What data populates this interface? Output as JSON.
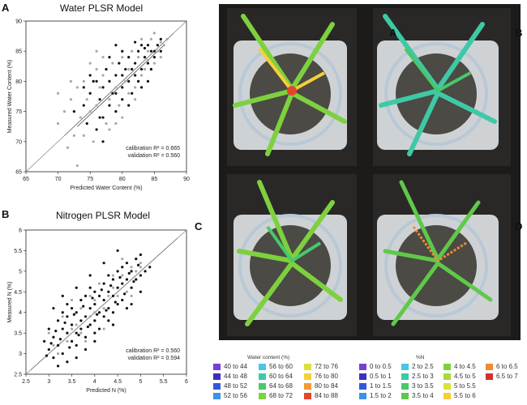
{
  "panels": {
    "a": "A",
    "b": "B",
    "c": "C",
    "d": "D",
    "chart_a": "A",
    "chart_b": "B"
  },
  "chart_data": [
    {
      "type": "scatter",
      "title": "Water PLSR Model",
      "xlabel": "Predicted Water Content (%)",
      "ylabel": "Measured Water Content (%)",
      "xlim": [
        65,
        90
      ],
      "ylim": [
        65,
        90
      ],
      "xticks": [
        "65",
        "70",
        "75",
        "80",
        "85",
        "90"
      ],
      "yticks": [
        "65",
        "70",
        "75",
        "80",
        "85",
        "90"
      ],
      "xtick_values": [
        65,
        70,
        75,
        80,
        85,
        90
      ],
      "ytick_values": [
        65,
        70,
        75,
        80,
        85,
        90
      ],
      "stats": [
        "calibration R² = 0.665",
        "validation R² = 0.560"
      ],
      "fit_lines": [
        [
          71,
          71,
          88,
          88
        ],
        [
          73,
          72.5,
          86.5,
          86
        ]
      ],
      "cal_points": [
        [
          72.5,
          75
        ],
        [
          74,
          76
        ],
        [
          74.5,
          73
        ],
        [
          75,
          78
        ],
        [
          75.5,
          80
        ],
        [
          76,
          72
        ],
        [
          76.5,
          77
        ],
        [
          77,
          79
        ],
        [
          77,
          74
        ],
        [
          77.5,
          82
        ],
        [
          78,
          76
        ],
        [
          78,
          80
        ],
        [
          78.5,
          78
        ],
        [
          79,
          81
        ],
        [
          79,
          75
        ],
        [
          79.5,
          83
        ],
        [
          80,
          79
        ],
        [
          80,
          77
        ],
        [
          80.5,
          82
        ],
        [
          81,
          80
        ],
        [
          81,
          84
        ],
        [
          81.5,
          78
        ],
        [
          82,
          83
        ],
        [
          82,
          81
        ],
        [
          82.5,
          85
        ],
        [
          83,
          82
        ],
        [
          83,
          79
        ],
        [
          83.5,
          84
        ],
        [
          84,
          83
        ],
        [
          84,
          86
        ],
        [
          84.5,
          82
        ],
        [
          85,
          85
        ],
        [
          85,
          84
        ],
        [
          85.5,
          86
        ],
        [
          86,
          85
        ],
        [
          76,
          80
        ],
        [
          77,
          70
        ],
        [
          79,
          86
        ],
        [
          81,
          76
        ],
        [
          82,
          86.5
        ],
        [
          83,
          86
        ],
        [
          84,
          80
        ],
        [
          78,
          84
        ],
        [
          80,
          85
        ],
        [
          75,
          81
        ],
        [
          86,
          87
        ],
        [
          74,
          79
        ],
        [
          79,
          78
        ],
        [
          80,
          81
        ],
        [
          81.5,
          82
        ],
        [
          82.5,
          80
        ],
        [
          83.5,
          85.5
        ],
        [
          84.5,
          85
        ],
        [
          76.5,
          74
        ]
      ],
      "val_points": [
        [
          70,
          73
        ],
        [
          71,
          75
        ],
        [
          71.5,
          69
        ],
        [
          72,
          77
        ],
        [
          72.5,
          71
        ],
        [
          73,
          66
        ],
        [
          73.5,
          74
        ],
        [
          74,
          80
        ],
        [
          74.5,
          77
        ],
        [
          75,
          75
        ],
        [
          75.5,
          70
        ],
        [
          76,
          82
        ],
        [
          76,
          76
        ],
        [
          76.5,
          79
        ],
        [
          77,
          81
        ],
        [
          77.5,
          73
        ],
        [
          78,
          77
        ],
        [
          78.5,
          83
        ],
        [
          79,
          79
        ],
        [
          79.5,
          76
        ],
        [
          80,
          84
        ],
        [
          80.5,
          80
        ],
        [
          81,
          82
        ],
        [
          81.5,
          85
        ],
        [
          82,
          79
        ],
        [
          82.5,
          84
        ],
        [
          83,
          87
        ],
        [
          83.5,
          82
        ],
        [
          84,
          85
        ],
        [
          84.5,
          87
        ],
        [
          85,
          83
        ],
        [
          85.5,
          85
        ],
        [
          86,
          84
        ],
        [
          86.5,
          86
        ],
        [
          87,
          87
        ],
        [
          70,
          78
        ],
        [
          72,
          80
        ],
        [
          74,
          71
        ],
        [
          75,
          83
        ],
        [
          77,
          84
        ],
        [
          78,
          72
        ],
        [
          80,
          74
        ],
        [
          82,
          77
        ],
        [
          85,
          88
        ],
        [
          86,
          86.5
        ],
        [
          73,
          79
        ],
        [
          76,
          85
        ],
        [
          79,
          73
        ],
        [
          81,
          78
        ],
        [
          83,
          81
        ],
        [
          84,
          83.5
        ]
      ]
    },
    {
      "type": "scatter",
      "title": "Nitrogen PLSR Model",
      "xlabel": "Predicted N (%)",
      "ylabel": "Measured N (%)",
      "xlim": [
        2.5,
        6
      ],
      "ylim": [
        2.5,
        6
      ],
      "xticks": [
        "2.5",
        "3",
        "3.5",
        "4",
        "4.5",
        "5",
        "5.5",
        "6"
      ],
      "yticks": [
        "2.5",
        "3",
        "3.5",
        "4",
        "4.5",
        "5",
        "5.5",
        "6"
      ],
      "xtick_values": [
        2.5,
        3,
        3.5,
        4,
        4.5,
        5,
        5.5,
        6
      ],
      "ytick_values": [
        2.5,
        3,
        3.5,
        4,
        4.5,
        5,
        5.5,
        6
      ],
      "stats": [
        "calibration R² = 0.560",
        "validation R² = 0.594"
      ],
      "fit_lines": [
        [
          2.6,
          2.6,
          5.8,
          5.8
        ]
      ],
      "cal_points": [
        [
          3.0,
          3.1
        ],
        [
          3.0,
          3.6
        ],
        [
          3.1,
          2.9
        ],
        [
          3.1,
          3.4
        ],
        [
          3.2,
          3.8
        ],
        [
          3.2,
          3.2
        ],
        [
          3.3,
          3.6
        ],
        [
          3.3,
          4.0
        ],
        [
          3.3,
          3.0
        ],
        [
          3.4,
          3.5
        ],
        [
          3.4,
          3.9
        ],
        [
          3.4,
          4.2
        ],
        [
          3.5,
          3.3
        ],
        [
          3.5,
          3.7
        ],
        [
          3.5,
          4.1
        ],
        [
          3.6,
          3.5
        ],
        [
          3.6,
          4.0
        ],
        [
          3.6,
          3.2
        ],
        [
          3.7,
          3.8
        ],
        [
          3.7,
          4.3
        ],
        [
          3.7,
          3.6
        ],
        [
          3.8,
          3.9
        ],
        [
          3.8,
          4.4
        ],
        [
          3.8,
          3.4
        ],
        [
          3.9,
          4.1
        ],
        [
          3.9,
          3.7
        ],
        [
          3.9,
          4.6
        ],
        [
          4.0,
          4.2
        ],
        [
          4.0,
          3.8
        ],
        [
          4.0,
          4.5
        ],
        [
          4.1,
          4.0
        ],
        [
          4.1,
          4.4
        ],
        [
          4.1,
          3.6
        ],
        [
          4.2,
          4.3
        ],
        [
          4.2,
          4.7
        ],
        [
          4.2,
          3.9
        ],
        [
          4.3,
          4.5
        ],
        [
          4.3,
          4.1
        ],
        [
          4.3,
          4.9
        ],
        [
          4.4,
          4.4
        ],
        [
          4.4,
          4.8
        ],
        [
          4.4,
          4.0
        ],
        [
          4.5,
          4.6
        ],
        [
          4.5,
          5.0
        ],
        [
          4.5,
          4.2
        ],
        [
          4.6,
          4.7
        ],
        [
          4.6,
          5.1
        ],
        [
          4.6,
          4.3
        ],
        [
          4.7,
          4.8
        ],
        [
          4.7,
          5.2
        ],
        [
          4.8,
          4.6
        ],
        [
          4.8,
          5.0
        ],
        [
          4.9,
          4.8
        ],
        [
          4.9,
          5.3
        ],
        [
          5.0,
          4.9
        ],
        [
          5.0,
          5.4
        ],
        [
          5.1,
          5.0
        ],
        [
          5.2,
          5.1
        ],
        [
          3.2,
          2.7
        ],
        [
          3.4,
          2.8
        ],
        [
          3.6,
          2.9
        ],
        [
          4.0,
          3.3
        ],
        [
          4.4,
          3.7
        ],
        [
          4.8,
          4.2
        ],
        [
          3.1,
          4.1
        ],
        [
          3.3,
          4.4
        ],
        [
          3.6,
          4.6
        ],
        [
          3.9,
          4.9
        ],
        [
          4.2,
          5.2
        ],
        [
          4.5,
          5.5
        ],
        [
          3.8,
          3.1
        ],
        [
          4.0,
          3.5
        ],
        [
          4.3,
          3.8
        ],
        [
          4.7,
          4.1
        ],
        [
          5.0,
          4.5
        ],
        [
          2.9,
          3.3
        ],
        [
          2.95,
          2.95
        ],
        [
          3.05,
          3.25
        ],
        [
          3.15,
          3.55
        ],
        [
          3.25,
          3.35
        ],
        [
          3.35,
          3.75
        ],
        [
          3.45,
          3.15
        ],
        [
          3.55,
          3.95
        ],
        [
          3.65,
          3.45
        ],
        [
          3.75,
          4.15
        ],
        [
          3.85,
          3.65
        ],
        [
          3.95,
          4.35
        ],
        [
          4.05,
          3.95
        ],
        [
          4.15,
          4.55
        ],
        [
          4.25,
          4.05
        ],
        [
          4.35,
          4.65
        ],
        [
          4.45,
          4.25
        ],
        [
          4.55,
          4.85
        ],
        [
          4.65,
          4.45
        ],
        [
          4.75,
          4.95
        ],
        [
          4.85,
          4.75
        ],
        [
          4.95,
          5.15
        ]
      ],
      "val_points": [
        [
          3.0,
          3.5
        ],
        [
          3.2,
          3.0
        ],
        [
          3.3,
          3.9
        ],
        [
          3.4,
          3.3
        ],
        [
          3.5,
          4.3
        ],
        [
          3.6,
          3.7
        ],
        [
          3.7,
          4.1
        ],
        [
          3.8,
          3.3
        ],
        [
          3.9,
          4.4
        ],
        [
          4.0,
          4.0
        ],
        [
          4.1,
          4.7
        ],
        [
          4.2,
          4.1
        ],
        [
          4.3,
          4.4
        ],
        [
          4.4,
          4.9
        ],
        [
          4.5,
          4.4
        ],
        [
          4.6,
          4.9
        ],
        [
          4.7,
          4.5
        ],
        [
          4.8,
          5.1
        ],
        [
          4.9,
          5.0
        ],
        [
          5.0,
          5.2
        ],
        [
          3.1,
          3.2
        ],
        [
          3.5,
          3.6
        ],
        [
          3.7,
          3.5
        ],
        [
          4.0,
          4.3
        ],
        [
          4.4,
          4.6
        ],
        [
          4.6,
          5.3
        ],
        [
          5.0,
          5.1
        ],
        [
          4.2,
          3.6
        ],
        [
          4.8,
          4.4
        ],
        [
          3.9,
          3.9
        ]
      ]
    }
  ],
  "legends": {
    "water": {
      "title": "Water content (%)",
      "items": [
        {
          "label": "40 to 44",
          "color": "#7a3fd0"
        },
        {
          "label": "44 to 48",
          "color": "#3b2fc0"
        },
        {
          "label": "48 to 52",
          "color": "#2f5bd8"
        },
        {
          "label": "52 to 56",
          "color": "#3c93e6"
        },
        {
          "label": "56 to 60",
          "color": "#49c6e8"
        },
        {
          "label": "60 to 64",
          "color": "#3ec9a6"
        },
        {
          "label": "64 to 68",
          "color": "#49c86a"
        },
        {
          "label": "68 to 72",
          "color": "#7ed13e"
        },
        {
          "label": "72 to 76",
          "color": "#d9e23a"
        },
        {
          "label": "76 to 80",
          "color": "#f5cf3b"
        },
        {
          "label": "80 to 84",
          "color": "#f59a33"
        },
        {
          "label": "84 to 88",
          "color": "#e5452d"
        }
      ]
    },
    "nitrogen": {
      "title": "%N",
      "items": [
        {
          "label": "0 to 0.5",
          "color": "#7a3fd0"
        },
        {
          "label": "0.5 to 1",
          "color": "#3b2fc0"
        },
        {
          "label": "1 to 1.5",
          "color": "#2f5bd8"
        },
        {
          "label": "1.5 to 2",
          "color": "#3c93e6"
        },
        {
          "label": "2 to 2.5",
          "color": "#49c6e8"
        },
        {
          "label": "2.5 to 3",
          "color": "#3ec9a6"
        },
        {
          "label": "3 to 3.5",
          "color": "#49c86a"
        },
        {
          "label": "3.5 to 4",
          "color": "#5fc94a"
        },
        {
          "label": "4 to 4.5",
          "color": "#7ed13e"
        },
        {
          "label": "4.5 to 5",
          "color": "#a9d93a"
        },
        {
          "label": "5 to 5.5",
          "color": "#d9e23a"
        },
        {
          "label": "5.5 to 6",
          "color": "#f5cf3b"
        },
        {
          "label": "6 to 6.5",
          "color": "#f28a33"
        },
        {
          "label": "6.5 to 7",
          "color": "#d1322a"
        }
      ]
    }
  }
}
